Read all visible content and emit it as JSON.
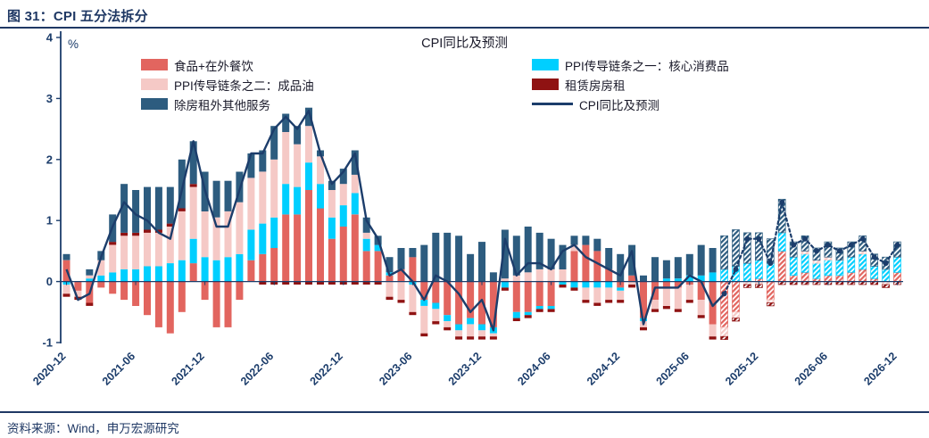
{
  "page": {
    "title": "图 31：CPI 五分法拆分",
    "source": "资料来源：Wind，申万宏源研究",
    "accent_navy": "#1F3864"
  },
  "chart_data": {
    "type": "bar",
    "subtype": "stacked-bar-with-line",
    "title": "CPI同比及预测",
    "unit_label": "%",
    "ylim": [
      -1,
      4
    ],
    "yticks": [
      -1,
      0,
      1,
      2,
      3,
      4
    ],
    "grid": false,
    "legend_position": "top-inside-two-columns",
    "axis_color": "#1C3D6B",
    "forecast_start": "2025-09",
    "x_tick_labels": [
      "2020-12",
      "2021-06",
      "2021-12",
      "2022-06",
      "2022-12",
      "2023-06",
      "2023-12",
      "2024-06",
      "2024-12",
      "2025-06",
      "2025-12",
      "2026-06",
      "2026-12"
    ],
    "months": [
      "2020-12",
      "2021-01",
      "2021-02",
      "2021-03",
      "2021-04",
      "2021-05",
      "2021-06",
      "2021-07",
      "2021-08",
      "2021-09",
      "2021-10",
      "2021-11",
      "2021-12",
      "2022-01",
      "2022-02",
      "2022-03",
      "2022-04",
      "2022-05",
      "2022-06",
      "2022-07",
      "2022-08",
      "2022-09",
      "2022-10",
      "2022-11",
      "2022-12",
      "2023-01",
      "2023-02",
      "2023-03",
      "2023-04",
      "2023-05",
      "2023-06",
      "2023-07",
      "2023-08",
      "2023-09",
      "2023-10",
      "2023-11",
      "2023-12",
      "2024-01",
      "2024-02",
      "2024-03",
      "2024-04",
      "2024-05",
      "2024-06",
      "2024-07",
      "2024-08",
      "2024-09",
      "2024-10",
      "2024-11",
      "2024-12",
      "2025-01",
      "2025-02",
      "2025-03",
      "2025-04",
      "2025-05",
      "2025-06",
      "2025-07",
      "2025-08",
      "2025-09",
      "2025-10",
      "2025-11",
      "2025-12",
      "2026-01",
      "2026-02",
      "2026-03",
      "2026-04",
      "2026-05",
      "2026-06",
      "2026-07",
      "2026-08",
      "2026-09",
      "2026-10",
      "2026-11",
      "2026-12"
    ],
    "bar_series": [
      {
        "name": "食品+在外餐饮",
        "color": "#E2655F",
        "values": [
          0.35,
          -0.15,
          -0.35,
          -0.1,
          -0.2,
          -0.3,
          -0.4,
          -0.55,
          -0.75,
          -0.85,
          -0.5,
          0.3,
          -0.3,
          -0.75,
          -0.75,
          -0.3,
          0.35,
          0.45,
          0.55,
          1.1,
          1.1,
          1.5,
          1.2,
          0.7,
          0.9,
          1.1,
          0.5,
          0.5,
          0.1,
          0.2,
          0.4,
          -0.3,
          -0.35,
          -0.55,
          -0.7,
          -0.6,
          -0.7,
          -0.75,
          0.0,
          -0.5,
          -0.5,
          -0.4,
          -0.4,
          0.0,
          0.5,
          0.6,
          0.5,
          0.2,
          -0.1,
          0.1,
          -0.6,
          -0.3,
          -0.1,
          -0.1,
          -0.05,
          -0.3,
          -0.7,
          -0.75,
          -0.5,
          0.0,
          0.05,
          -0.3,
          0.5,
          0.1,
          0.15,
          0.05,
          0.1,
          0.1,
          0.15,
          0.2,
          0.05,
          0.0,
          0.15
        ]
      },
      {
        "name": "PPI传导链条之一：核心消费品",
        "color": "#00CFFF",
        "values": [
          -0.05,
          0.0,
          0.05,
          0.1,
          0.15,
          0.2,
          0.2,
          0.25,
          0.25,
          0.3,
          0.35,
          0.4,
          0.4,
          0.35,
          0.4,
          0.45,
          0.5,
          0.5,
          0.5,
          0.5,
          0.45,
          0.45,
          0.4,
          0.35,
          0.35,
          0.35,
          0.2,
          0.1,
          0.05,
          0.0,
          -0.05,
          -0.1,
          -0.1,
          -0.1,
          -0.1,
          -0.1,
          -0.1,
          -0.1,
          -0.1,
          -0.1,
          -0.05,
          -0.05,
          -0.05,
          -0.05,
          -0.1,
          -0.1,
          -0.1,
          -0.1,
          -0.05,
          0.0,
          -0.05,
          0.0,
          0.05,
          0.05,
          0.1,
          0.1,
          0.15,
          0.2,
          0.25,
          0.3,
          0.3,
          0.3,
          0.3,
          0.3,
          0.3,
          0.25,
          0.25,
          0.25,
          0.25,
          0.25,
          0.2,
          0.2,
          0.25
        ]
      },
      {
        "name": "PPI传导链条之二：成品油",
        "color": "#F5C9C6",
        "values": [
          -0.15,
          -0.1,
          0.05,
          0.25,
          0.45,
          0.55,
          0.55,
          0.55,
          0.55,
          0.6,
          0.8,
          0.85,
          0.75,
          0.7,
          0.75,
          0.85,
          0.85,
          0.85,
          0.95,
          0.85,
          0.7,
          0.6,
          0.45,
          0.45,
          0.35,
          0.3,
          0.1,
          0.0,
          -0.25,
          -0.3,
          -0.45,
          -0.45,
          -0.2,
          -0.1,
          -0.1,
          -0.2,
          -0.1,
          -0.05,
          0.05,
          0.1,
          0.15,
          0.2,
          0.2,
          0.2,
          0.1,
          -0.2,
          -0.25,
          -0.2,
          -0.15,
          -0.05,
          -0.1,
          -0.15,
          -0.3,
          -0.35,
          -0.25,
          -0.25,
          -0.2,
          -0.15,
          -0.1,
          -0.05,
          -0.05,
          -0.05,
          0.0,
          0.0,
          0.05,
          0.05,
          0.05,
          0.0,
          0.0,
          0.05,
          0.0,
          -0.05,
          0.0
        ]
      },
      {
        "name": "租赁房房租",
        "color": "#8F1212",
        "values": [
          -0.05,
          -0.05,
          -0.05,
          0.0,
          0.05,
          0.05,
          0.05,
          0.05,
          0.05,
          0.05,
          0.05,
          0.05,
          0.0,
          0.0,
          0.0,
          0.0,
          0.0,
          -0.05,
          -0.05,
          -0.05,
          -0.05,
          -0.05,
          -0.05,
          -0.05,
          -0.05,
          -0.05,
          -0.05,
          -0.05,
          -0.05,
          -0.05,
          -0.05,
          -0.05,
          -0.05,
          -0.05,
          -0.05,
          -0.05,
          -0.05,
          -0.05,
          -0.05,
          -0.05,
          -0.05,
          -0.05,
          -0.05,
          -0.05,
          -0.05,
          -0.05,
          -0.05,
          -0.05,
          -0.05,
          -0.05,
          -0.05,
          -0.05,
          -0.05,
          -0.05,
          -0.05,
          -0.05,
          -0.05,
          -0.05,
          -0.05,
          -0.05,
          -0.05,
          -0.05,
          -0.05,
          -0.05,
          -0.05,
          -0.05,
          -0.05,
          -0.05,
          -0.05,
          -0.05,
          -0.05,
          -0.05,
          -0.05
        ]
      },
      {
        "name": "除房租外其他服务",
        "color": "#2D5C7F",
        "values": [
          0.1,
          0.0,
          0.1,
          0.15,
          0.45,
          0.8,
          0.7,
          0.7,
          0.7,
          0.6,
          0.8,
          0.7,
          0.65,
          0.6,
          0.5,
          0.5,
          0.4,
          0.35,
          0.55,
          0.3,
          0.3,
          0.3,
          0.1,
          0.15,
          0.25,
          0.4,
          0.25,
          0.15,
          0.25,
          0.35,
          0.15,
          0.6,
          0.8,
          0.8,
          0.75,
          0.45,
          0.65,
          0.15,
          0.8,
          0.65,
          0.75,
          0.6,
          0.5,
          0.4,
          0.15,
          0.15,
          0.2,
          0.35,
          0.45,
          0.5,
          0.1,
          0.4,
          0.3,
          0.35,
          0.35,
          0.5,
          0.4,
          0.55,
          0.6,
          0.5,
          0.45,
          0.4,
          0.55,
          0.25,
          0.25,
          0.2,
          0.25,
          0.2,
          0.25,
          0.25,
          0.2,
          0.2,
          0.25
        ]
      }
    ],
    "line_series": {
      "name": "CPI同比及预测",
      "color": "#1C3D6B",
      "values": [
        0.2,
        -0.3,
        -0.2,
        0.4,
        0.9,
        1.3,
        1.1,
        1.0,
        0.8,
        0.7,
        1.5,
        2.3,
        1.5,
        0.9,
        0.9,
        1.5,
        2.1,
        2.1,
        2.5,
        2.7,
        2.5,
        2.8,
        2.1,
        1.6,
        1.8,
        2.1,
        1.0,
        0.7,
        0.1,
        0.2,
        0.0,
        -0.3,
        0.1,
        0.0,
        -0.2,
        -0.5,
        -0.3,
        -0.8,
        0.7,
        0.1,
        0.3,
        0.3,
        0.2,
        0.5,
        0.6,
        0.4,
        0.3,
        0.2,
        0.1,
        0.5,
        -0.7,
        -0.1,
        -0.1,
        -0.1,
        0.1,
        0.0,
        -0.4,
        -0.2,
        0.2,
        0.7,
        0.7,
        0.3,
        1.3,
        0.6,
        0.7,
        0.5,
        0.6,
        0.5,
        0.6,
        0.7,
        0.4,
        0.3,
        0.6
      ]
    }
  }
}
